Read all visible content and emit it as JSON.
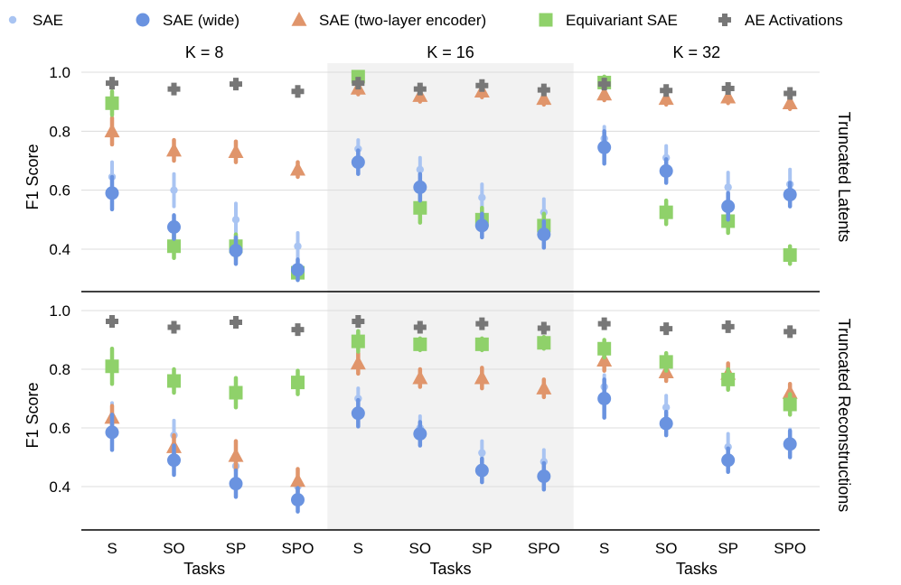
{
  "chart_data": {
    "type": "scatter",
    "legend": [
      {
        "key": "sae",
        "label": "SAE",
        "color": "#a9c4f2",
        "marker": "circle-small"
      },
      {
        "key": "sae_wide",
        "label": "SAE (wide)",
        "color": "#6a93e0",
        "marker": "circle"
      },
      {
        "key": "sae_two",
        "label": "SAE (two-layer encoder)",
        "color": "#e0956b",
        "marker": "triangle"
      },
      {
        "key": "equi",
        "label": "Equivariant SAE",
        "color": "#8fd16a",
        "marker": "square"
      },
      {
        "key": "ae",
        "label": "AE Activations",
        "color": "#777777",
        "marker": "plus"
      }
    ],
    "columns": [
      "K = 8",
      "K = 16",
      "K = 32"
    ],
    "rows": [
      "Truncated Latents",
      "Truncated Reconstructions"
    ],
    "tasks": [
      "S",
      "SO",
      "SP",
      "SPO"
    ],
    "xlabel": "Tasks",
    "ylabel": "F1 Score",
    "yticks": [
      "0.4",
      "0.6",
      "0.8",
      "1.0"
    ],
    "ylim": [
      0.29,
      1.03
    ],
    "panels": [
      [
        {
          "sae": [
            [
              0.645,
              0.05
            ],
            [
              0.6,
              0.055
            ],
            [
              0.5,
              0.055
            ],
            [
              0.41,
              0.045
            ]
          ],
          "sae_wide": [
            [
              0.59,
              0.055
            ],
            [
              0.475,
              0.04
            ],
            [
              0.395,
              0.045
            ],
            [
              0.33,
              0.035
            ]
          ],
          "sae_two": [
            [
              0.8,
              0.045
            ],
            [
              0.735,
              0.035
            ],
            [
              0.73,
              0.035
            ],
            [
              0.67,
              0.025
            ]
          ],
          "equi": [
            [
              0.895,
              0.04
            ],
            [
              0.41,
              0.04
            ],
            [
              0.41,
              0.04
            ],
            [
              0.32,
              0.02
            ]
          ],
          "ae": [
            [
              0.963,
              0.0
            ],
            [
              0.943,
              0.0
            ],
            [
              0.96,
              0.0
            ],
            [
              0.935,
              0.0
            ]
          ]
        },
        {
          "sae": [
            [
              0.74,
              0.03
            ],
            [
              0.67,
              0.04
            ],
            [
              0.575,
              0.045
            ],
            [
              0.525,
              0.045
            ]
          ],
          "sae_wide": [
            [
              0.695,
              0.04
            ],
            [
              0.61,
              0.045
            ],
            [
              0.48,
              0.04
            ],
            [
              0.45,
              0.045
            ]
          ],
          "sae_two": [
            [
              0.945,
              0.02
            ],
            [
              0.92,
              0.02
            ],
            [
              0.935,
              0.02
            ],
            [
              0.91,
              0.02
            ]
          ],
          "equi": [
            [
              0.985,
              0.015
            ],
            [
              0.54,
              0.05
            ],
            [
              0.5,
              0.04
            ],
            [
              0.48,
              0.04
            ]
          ],
          "ae": [
            [
              0.963,
              0.0
            ],
            [
              0.943,
              0.0
            ],
            [
              0.955,
              0.0
            ],
            [
              0.94,
              0.0
            ]
          ]
        },
        {
          "sae": [
            [
              0.775,
              0.04
            ],
            [
              0.71,
              0.04
            ],
            [
              0.61,
              0.05
            ],
            [
              0.62,
              0.05
            ]
          ],
          "sae_wide": [
            [
              0.745,
              0.055
            ],
            [
              0.665,
              0.04
            ],
            [
              0.545,
              0.045
            ],
            [
              0.585,
              0.04
            ]
          ],
          "sae_two": [
            [
              0.925,
              0.02
            ],
            [
              0.91,
              0.02
            ],
            [
              0.915,
              0.02
            ],
            [
              0.895,
              0.02
            ]
          ],
          "equi": [
            [
              0.965,
              0.02
            ],
            [
              0.525,
              0.04
            ],
            [
              0.495,
              0.04
            ],
            [
              0.38,
              0.03
            ]
          ],
          "ae": [
            [
              0.96,
              0.0
            ],
            [
              0.938,
              0.0
            ],
            [
              0.945,
              0.0
            ],
            [
              0.928,
              0.0
            ]
          ]
        }
      ],
      [
        {
          "sae": [
            [
              0.63,
              0.055
            ],
            [
              0.575,
              0.05
            ],
            [
              0.47,
              0.04
            ],
            [
              0.4,
              0.03
            ]
          ],
          "sae_wide": [
            [
              0.585,
              0.06
            ],
            [
              0.49,
              0.05
            ],
            [
              0.41,
              0.045
            ],
            [
              0.355,
              0.04
            ]
          ],
          "sae_two": [
            [
              0.635,
              0.04
            ],
            [
              0.535,
              0.04
            ],
            [
              0.505,
              0.05
            ],
            [
              0.42,
              0.04
            ]
          ],
          "equi": [
            [
              0.81,
              0.06
            ],
            [
              0.76,
              0.04
            ],
            [
              0.72,
              0.05
            ],
            [
              0.755,
              0.04
            ]
          ],
          "ae": [
            [
              0.963,
              0.0
            ],
            [
              0.943,
              0.0
            ],
            [
              0.96,
              0.0
            ],
            [
              0.935,
              0.0
            ]
          ]
        },
        {
          "sae": [
            [
              0.7,
              0.035
            ],
            [
              0.6,
              0.04
            ],
            [
              0.515,
              0.04
            ],
            [
              0.485,
              0.04
            ]
          ],
          "sae_wide": [
            [
              0.65,
              0.045
            ],
            [
              0.58,
              0.04
            ],
            [
              0.455,
              0.04
            ],
            [
              0.435,
              0.045
            ]
          ],
          "sae_two": [
            [
              0.82,
              0.035
            ],
            [
              0.77,
              0.03
            ],
            [
              0.77,
              0.035
            ],
            [
              0.735,
              0.03
            ]
          ],
          "equi": [
            [
              0.895,
              0.035
            ],
            [
              0.885,
              0.02
            ],
            [
              0.885,
              0.02
            ],
            [
              0.89,
              0.02
            ]
          ],
          "ae": [
            [
              0.963,
              0.0
            ],
            [
              0.943,
              0.0
            ],
            [
              0.955,
              0.0
            ],
            [
              0.94,
              0.0
            ]
          ]
        },
        {
          "sae": [
            [
              0.74,
              0.04
            ],
            [
              0.67,
              0.04
            ],
            [
              0.535,
              0.045
            ],
            [
              0.555,
              0.04
            ]
          ],
          "sae_wide": [
            [
              0.7,
              0.065
            ],
            [
              0.615,
              0.04
            ],
            [
              0.49,
              0.04
            ],
            [
              0.545,
              0.045
            ]
          ],
          "sae_two": [
            [
              0.83,
              0.035
            ],
            [
              0.79,
              0.03
            ],
            [
              0.785,
              0.035
            ],
            [
              0.72,
              0.03
            ]
          ],
          "equi": [
            [
              0.87,
              0.03
            ],
            [
              0.825,
              0.03
            ],
            [
              0.765,
              0.035
            ],
            [
              0.68,
              0.035
            ]
          ],
          "ae": [
            [
              0.955,
              0.0
            ],
            [
              0.938,
              0.0
            ],
            [
              0.945,
              0.0
            ],
            [
              0.928,
              0.0
            ]
          ]
        }
      ]
    ]
  }
}
